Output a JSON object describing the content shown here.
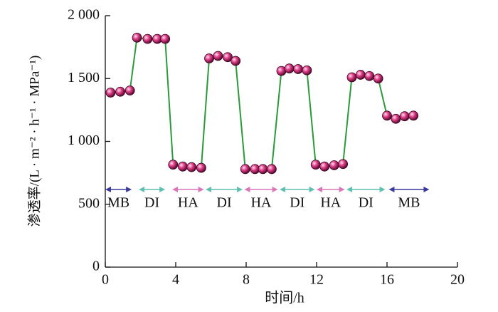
{
  "chart_data": {
    "type": "line",
    "xlabel": "时间/h",
    "ylabel": "渗透率/(L · m⁻² · h⁻¹ · MPa⁻¹)",
    "xlim": [
      0,
      20
    ],
    "xticks": [
      0,
      4,
      8,
      12,
      16,
      20
    ],
    "ylim": [
      0,
      2000
    ],
    "yticks": [
      0,
      500,
      {
        "value": 1000,
        "label": "1 000"
      },
      {
        "value": 1500,
        "label": "1 500"
      },
      {
        "value": 2000,
        "label": "2 000"
      }
    ],
    "line_color": "#2a9a3a",
    "marker_color": "#e0408a",
    "x": [
      0.3,
      0.85,
      1.4,
      1.8,
      2.4,
      2.95,
      3.4,
      3.85,
      4.4,
      4.9,
      5.45,
      5.9,
      6.4,
      6.95,
      7.4,
      7.95,
      8.5,
      8.95,
      9.45,
      10.0,
      10.45,
      10.95,
      11.45,
      11.95,
      12.45,
      13.0,
      13.5,
      14.0,
      14.5,
      15.0,
      15.5,
      16.0,
      16.5,
      17.0,
      17.5
    ],
    "values": [
      1388,
      1395,
      1405,
      1825,
      1815,
      1815,
      1815,
      815,
      800,
      795,
      790,
      1660,
      1680,
      1670,
      1640,
      780,
      780,
      780,
      780,
      1560,
      1580,
      1575,
      1565,
      815,
      800,
      810,
      820,
      1510,
      1530,
      1520,
      1500,
      1205,
      1180,
      1200,
      1205
    ],
    "segments": [
      {
        "label": "MB",
        "start": 0,
        "end": 1.5,
        "color": "#3b3b9e"
      },
      {
        "label": "DI",
        "start": 1.9,
        "end": 3.4,
        "color": "#5fbfb0"
      },
      {
        "label": "HA",
        "start": 3.8,
        "end": 5.6,
        "color": "#d977b8"
      },
      {
        "label": "DI",
        "start": 5.7,
        "end": 7.8,
        "color": "#5fbfb0"
      },
      {
        "label": "HA",
        "start": 7.9,
        "end": 9.8,
        "color": "#d977b8"
      },
      {
        "label": "DI",
        "start": 9.9,
        "end": 11.9,
        "color": "#5fbfb0"
      },
      {
        "label": "HA",
        "start": 12.0,
        "end": 13.6,
        "color": "#d977b8"
      },
      {
        "label": "DI",
        "start": 13.7,
        "end": 15.9,
        "color": "#5fbfb0"
      },
      {
        "label": "MB",
        "start": 16.1,
        "end": 18.4,
        "color": "#3b3b9e"
      }
    ]
  }
}
